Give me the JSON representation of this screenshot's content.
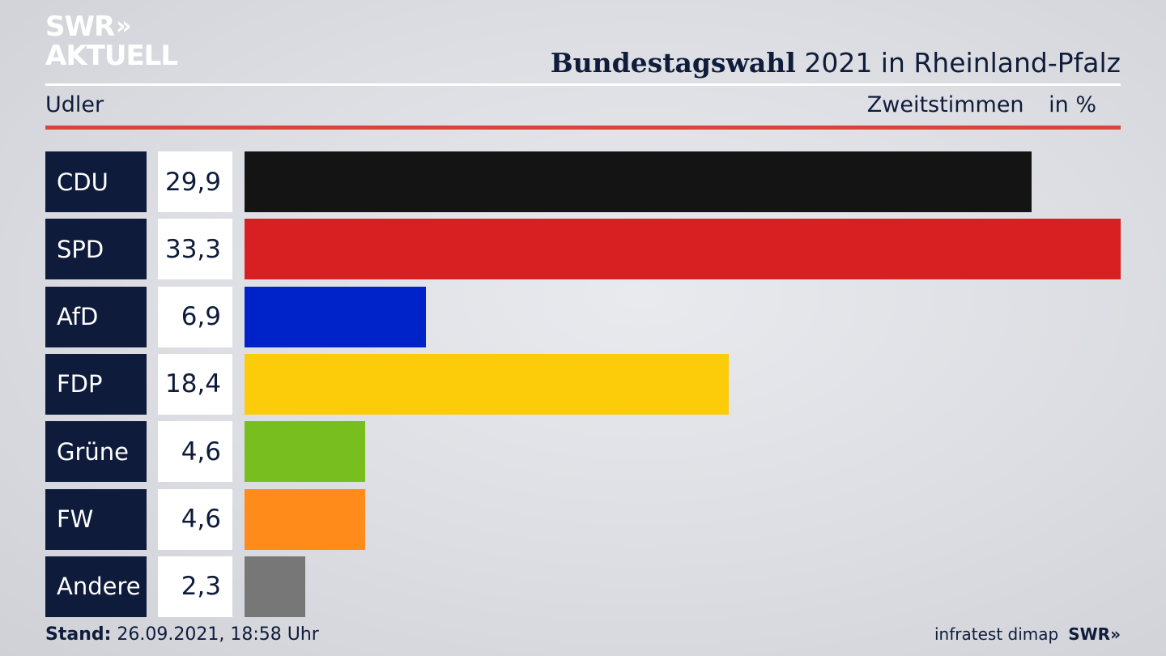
{
  "logo": {
    "line1": "SWR",
    "chevrons": "»",
    "line2": "AKTUELL"
  },
  "header": {
    "title_bold": "Bundestagswahl",
    "title_rest": "2021 in Rheinland-Pfalz"
  },
  "subheader": {
    "location": "Udler",
    "measure": "Zweitstimmen",
    "unit": "in %"
  },
  "chart_data": {
    "type": "bar",
    "orientation": "horizontal",
    "categories": [
      "CDU",
      "SPD",
      "AfD",
      "FDP",
      "Grüne",
      "FW",
      "Andere"
    ],
    "values": [
      29.9,
      33.3,
      6.9,
      18.4,
      4.6,
      4.6,
      2.3
    ],
    "value_labels": [
      "29,9",
      "33,3",
      "6,9",
      "18,4",
      "4,6",
      "4,6",
      "2,3"
    ],
    "colors": [
      "#141414",
      "#d81f22",
      "#0022c9",
      "#fccb0a",
      "#78be1e",
      "#ff8c1a",
      "#777777"
    ],
    "xlim": [
      0,
      33.3
    ]
  },
  "footer": {
    "stand_label": "Stand:",
    "stand_value": "26.09.2021, 18:58 Uhr",
    "source": "infratest dimap",
    "brand": "SWR",
    "brand_chevrons": "»"
  }
}
